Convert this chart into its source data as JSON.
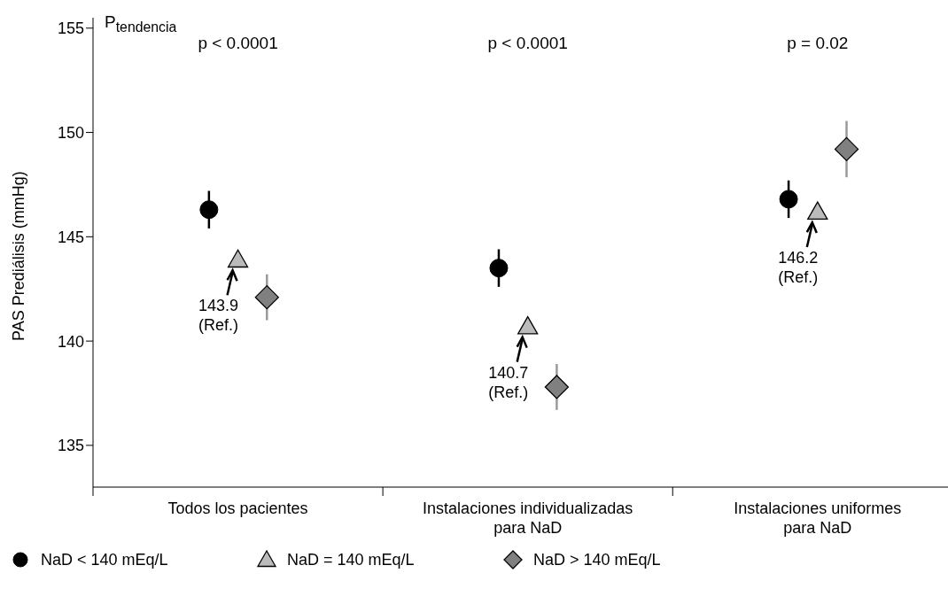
{
  "chart_data": {
    "type": "scatter",
    "categories": [
      "Todos los pacientes",
      "Instalaciones individualizadas para NaD",
      "Instalaciones uniformes para NaD"
    ],
    "ylabel": "PAS Prediálisis (mmHg)",
    "ylim": [
      133,
      155.5
    ],
    "yticks": [
      135,
      140,
      145,
      150,
      155
    ],
    "grid": false,
    "legend": "bottom",
    "annotations": [
      "P$_{tendencia}$",
      "p < 0.0001",
      "p < 0.0001",
      "p = 0.02"
    ],
    "series": [
      {
        "name": "NaD < 140 mEq/L",
        "color": "#000000",
        "marker": "circle",
        "values": [
          146.3,
          143.5,
          146.8
        ],
        "errors": [
          0.9,
          0.9,
          0.9
        ]
      },
      {
        "name": "NaD = 140 mEq/L",
        "color": "#bbbbbb",
        "marker": "triangle",
        "values": [
          143.9,
          140.7,
          146.2
        ],
        "value_labels": [
          "143.9 (Ref.)",
          "140.7 (Ref.)",
          "146.2 (Ref.)"
        ]
      },
      {
        "name": "NaD > 140 mEq/L",
        "color": "#808080",
        "marker": "diamond",
        "values": [
          142.1,
          137.8,
          149.2
        ],
        "errors": [
          1.1,
          1.1,
          1.35
        ]
      }
    ]
  }
}
